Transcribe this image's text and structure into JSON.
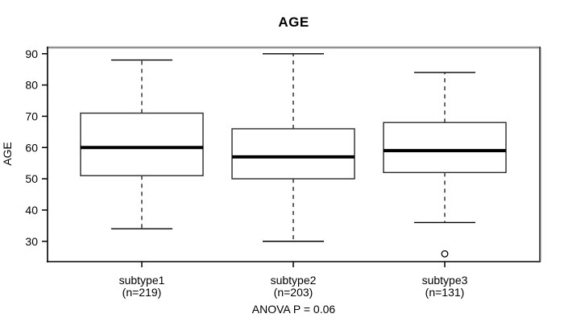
{
  "chart_data": {
    "type": "boxplot",
    "title": "AGE",
    "ylabel": "AGE",
    "xlabel": "",
    "annotation": "ANOVA P = 0.06",
    "y_ticks": [
      30,
      40,
      50,
      60,
      70,
      80,
      90
    ],
    "ylim": [
      23.5,
      92.0
    ],
    "grid": false,
    "legend": null,
    "colors": {
      "box_fill": "#ffffff",
      "line": "#000000",
      "frame_top": "#919191",
      "frame_side": "#3d3d3d"
    },
    "groups": [
      {
        "label": "subtype1",
        "n_label": "(n=219)",
        "n": 219,
        "whisker_low": 34,
        "q1": 51,
        "median": 60,
        "q3": 71,
        "whisker_high": 88,
        "outliers": []
      },
      {
        "label": "subtype2",
        "n_label": "(n=203)",
        "n": 203,
        "whisker_low": 30,
        "q1": 50,
        "median": 57,
        "q3": 66,
        "whisker_high": 90,
        "outliers": []
      },
      {
        "label": "subtype3",
        "n_label": "(n=131)",
        "n": 131,
        "whisker_low": 36,
        "q1": 52,
        "median": 59,
        "q3": 68,
        "whisker_high": 84,
        "outliers": [
          26
        ]
      }
    ]
  }
}
